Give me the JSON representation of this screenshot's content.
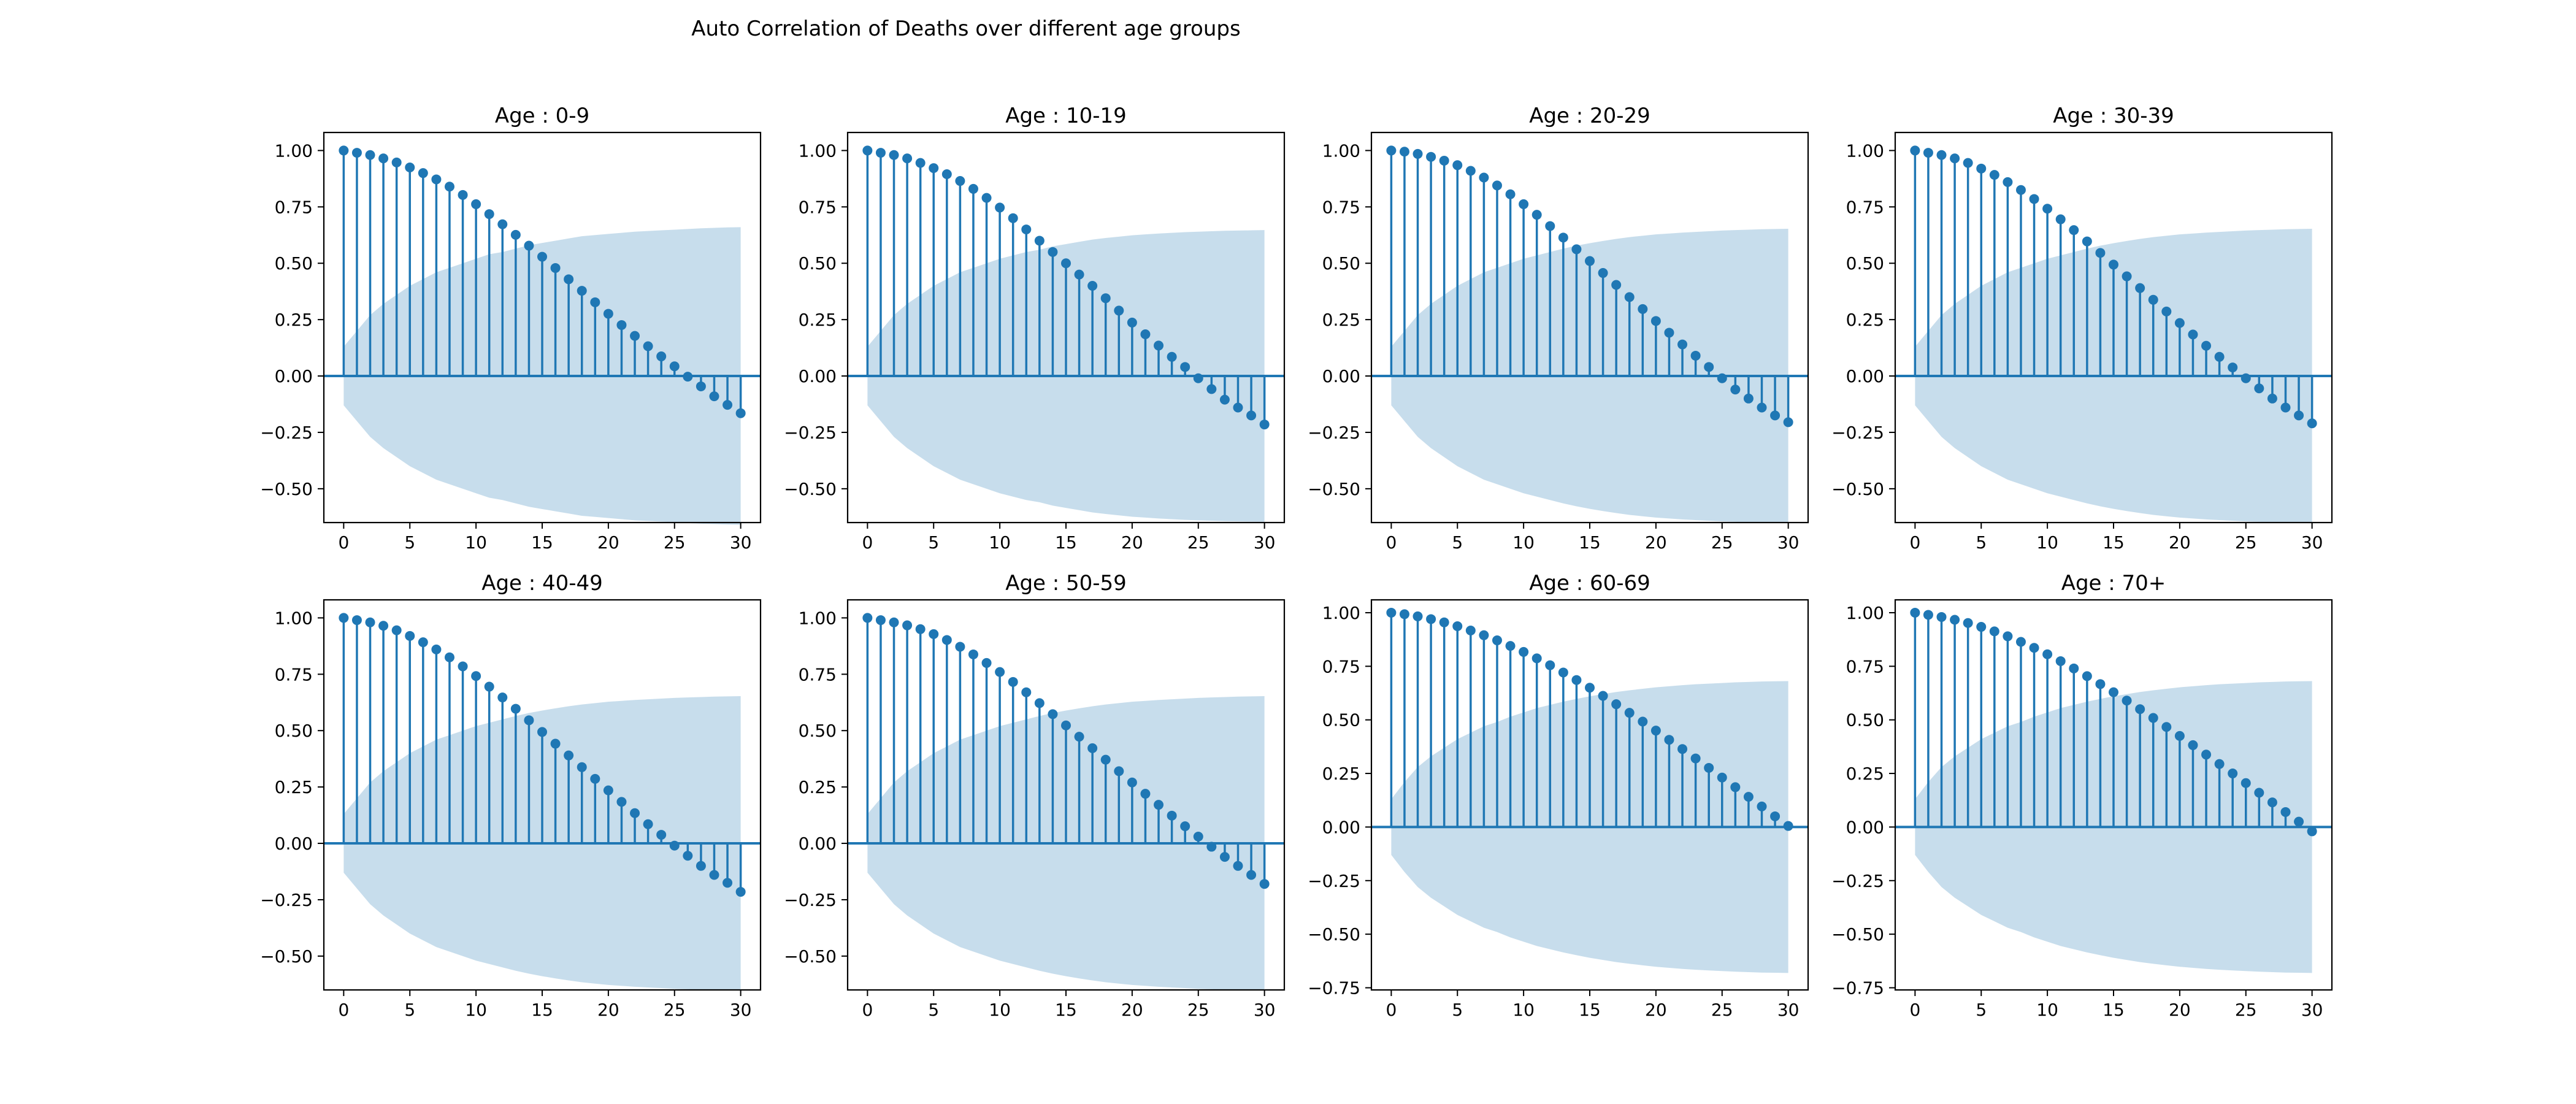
{
  "figure": {
    "suptitle": "Auto Correlation of Deaths over different age groups",
    "stem_color": "#1f77b4",
    "band_color": "#1f77b4",
    "band_opacity": 0.25
  },
  "chart_data": [
    {
      "type": "stem",
      "title": "Age : 0-9",
      "xlabel": "",
      "ylabel": "",
      "xlim": [
        -1.5,
        31.5
      ],
      "ylim": [
        -0.65,
        1.08
      ],
      "xticks": [
        0,
        5,
        10,
        15,
        20,
        25,
        30
      ],
      "yticks": [
        -0.5,
        -0.25,
        0.0,
        0.25,
        0.5,
        0.75,
        1.0
      ],
      "ytick_labels": [
        "−0.50",
        "−0.25",
        "0.00",
        "0.25",
        "0.50",
        "0.75",
        "1.00"
      ],
      "xtick_labels": [
        "0",
        "5",
        "10",
        "15",
        "20",
        "25",
        "30"
      ],
      "lags": [
        0,
        1,
        2,
        3,
        4,
        5,
        6,
        7,
        8,
        9,
        10,
        11,
        12,
        13,
        14,
        15,
        16,
        17,
        18,
        19,
        20,
        21,
        22,
        23,
        24,
        25,
        26,
        27,
        28,
        29,
        30
      ],
      "values": [
        1.0,
        0.99,
        0.98,
        0.965,
        0.947,
        0.925,
        0.9,
        0.872,
        0.84,
        0.803,
        0.762,
        0.718,
        0.673,
        0.626,
        0.578,
        0.529,
        0.479,
        0.429,
        0.378,
        0.327,
        0.276,
        0.226,
        0.178,
        0.132,
        0.087,
        0.043,
        -0.003,
        -0.046,
        -0.09,
        -0.128,
        -0.165
      ],
      "conf_band": [
        0.13,
        0.2,
        0.27,
        0.32,
        0.36,
        0.4,
        0.43,
        0.46,
        0.48,
        0.5,
        0.52,
        0.54,
        0.55,
        0.565,
        0.58,
        0.59,
        0.6,
        0.61,
        0.62,
        0.625,
        0.63,
        0.635,
        0.64,
        0.643,
        0.646,
        0.649,
        0.652,
        0.655,
        0.657,
        0.659,
        0.66
      ]
    },
    {
      "type": "stem",
      "title": "Age : 10-19",
      "xlabel": "",
      "ylabel": "",
      "xlim": [
        -1.5,
        31.5
      ],
      "ylim": [
        -0.65,
        1.08
      ],
      "xticks": [
        0,
        5,
        10,
        15,
        20,
        25,
        30
      ],
      "yticks": [
        -0.5,
        -0.25,
        0.0,
        0.25,
        0.5,
        0.75,
        1.0
      ],
      "ytick_labels": [
        "−0.50",
        "−0.25",
        "0.00",
        "0.25",
        "0.50",
        "0.75",
        "1.00"
      ],
      "xtick_labels": [
        "0",
        "5",
        "10",
        "15",
        "20",
        "25",
        "30"
      ],
      "lags": [
        0,
        1,
        2,
        3,
        4,
        5,
        6,
        7,
        8,
        9,
        10,
        11,
        12,
        13,
        14,
        15,
        16,
        17,
        18,
        19,
        20,
        21,
        22,
        23,
        24,
        25,
        26,
        27,
        28,
        29,
        30
      ],
      "values": [
        1.0,
        0.99,
        0.98,
        0.965,
        0.945,
        0.922,
        0.895,
        0.865,
        0.83,
        0.79,
        0.747,
        0.7,
        0.65,
        0.6,
        0.55,
        0.5,
        0.45,
        0.4,
        0.345,
        0.29,
        0.237,
        0.185,
        0.135,
        0.085,
        0.04,
        -0.01,
        -0.058,
        -0.105,
        -0.14,
        -0.175,
        -0.215
      ],
      "conf_band": [
        0.13,
        0.2,
        0.27,
        0.32,
        0.36,
        0.4,
        0.43,
        0.46,
        0.48,
        0.5,
        0.52,
        0.535,
        0.55,
        0.56,
        0.575,
        0.585,
        0.595,
        0.605,
        0.612,
        0.618,
        0.624,
        0.628,
        0.632,
        0.635,
        0.638,
        0.64,
        0.642,
        0.644,
        0.645,
        0.646,
        0.647
      ]
    },
    {
      "type": "stem",
      "title": "Age : 20-29",
      "xlabel": "",
      "ylabel": "",
      "xlim": [
        -1.5,
        31.5
      ],
      "ylim": [
        -0.65,
        1.08
      ],
      "xticks": [
        0,
        5,
        10,
        15,
        20,
        25,
        30
      ],
      "yticks": [
        -0.5,
        -0.25,
        0.0,
        0.25,
        0.5,
        0.75,
        1.0
      ],
      "ytick_labels": [
        "−0.50",
        "−0.25",
        "0.00",
        "0.25",
        "0.50",
        "0.75",
        "1.00"
      ],
      "xtick_labels": [
        "0",
        "5",
        "10",
        "15",
        "20",
        "25",
        "30"
      ],
      "lags": [
        0,
        1,
        2,
        3,
        4,
        5,
        6,
        7,
        8,
        9,
        10,
        11,
        12,
        13,
        14,
        15,
        16,
        17,
        18,
        19,
        20,
        21,
        22,
        23,
        24,
        25,
        26,
        27,
        28,
        29,
        30
      ],
      "values": [
        1.0,
        0.995,
        0.985,
        0.972,
        0.955,
        0.935,
        0.91,
        0.88,
        0.845,
        0.806,
        0.762,
        0.715,
        0.665,
        0.614,
        0.562,
        0.51,
        0.457,
        0.404,
        0.35,
        0.297,
        0.244,
        0.192,
        0.14,
        0.09,
        0.04,
        -0.01,
        -0.06,
        -0.1,
        -0.14,
        -0.175,
        -0.205
      ],
      "conf_band": [
        0.13,
        0.2,
        0.27,
        0.32,
        0.36,
        0.4,
        0.43,
        0.46,
        0.48,
        0.5,
        0.52,
        0.535,
        0.55,
        0.565,
        0.578,
        0.589,
        0.599,
        0.608,
        0.616,
        0.622,
        0.628,
        0.632,
        0.636,
        0.639,
        0.642,
        0.645,
        0.647,
        0.649,
        0.651,
        0.652,
        0.653
      ]
    },
    {
      "type": "stem",
      "title": "Age : 30-39",
      "xlabel": "",
      "ylabel": "",
      "xlim": [
        -1.5,
        31.5
      ],
      "ylim": [
        -0.65,
        1.08
      ],
      "xticks": [
        0,
        5,
        10,
        15,
        20,
        25,
        30
      ],
      "yticks": [
        -0.5,
        -0.25,
        0.0,
        0.25,
        0.5,
        0.75,
        1.0
      ],
      "ytick_labels": [
        "−0.50",
        "−0.25",
        "0.00",
        "0.25",
        "0.50",
        "0.75",
        "1.00"
      ],
      "xtick_labels": [
        "0",
        "5",
        "10",
        "15",
        "20",
        "25",
        "30"
      ],
      "lags": [
        0,
        1,
        2,
        3,
        4,
        5,
        6,
        7,
        8,
        9,
        10,
        11,
        12,
        13,
        14,
        15,
        16,
        17,
        18,
        19,
        20,
        21,
        22,
        23,
        24,
        25,
        26,
        27,
        28,
        29,
        30
      ],
      "values": [
        1.0,
        0.99,
        0.98,
        0.965,
        0.945,
        0.92,
        0.892,
        0.86,
        0.825,
        0.785,
        0.742,
        0.695,
        0.647,
        0.597,
        0.546,
        0.494,
        0.442,
        0.39,
        0.338,
        0.286,
        0.235,
        0.184,
        0.134,
        0.085,
        0.038,
        -0.01,
        -0.055,
        -0.1,
        -0.14,
        -0.175,
        -0.21
      ],
      "conf_band": [
        0.13,
        0.2,
        0.27,
        0.32,
        0.36,
        0.4,
        0.43,
        0.46,
        0.48,
        0.5,
        0.52,
        0.535,
        0.55,
        0.565,
        0.578,
        0.589,
        0.599,
        0.608,
        0.616,
        0.622,
        0.628,
        0.632,
        0.636,
        0.639,
        0.642,
        0.645,
        0.647,
        0.649,
        0.651,
        0.652,
        0.653
      ]
    },
    {
      "type": "stem",
      "title": "Age : 40-49",
      "xlabel": "",
      "ylabel": "",
      "xlim": [
        -1.5,
        31.5
      ],
      "ylim": [
        -0.65,
        1.08
      ],
      "xticks": [
        0,
        5,
        10,
        15,
        20,
        25,
        30
      ],
      "yticks": [
        -0.5,
        -0.25,
        0.0,
        0.25,
        0.5,
        0.75,
        1.0
      ],
      "ytick_labels": [
        "−0.50",
        "−0.25",
        "0.00",
        "0.25",
        "0.50",
        "0.75",
        "1.00"
      ],
      "xtick_labels": [
        "0",
        "5",
        "10",
        "15",
        "20",
        "25",
        "30"
      ],
      "lags": [
        0,
        1,
        2,
        3,
        4,
        5,
        6,
        7,
        8,
        9,
        10,
        11,
        12,
        13,
        14,
        15,
        16,
        17,
        18,
        19,
        20,
        21,
        22,
        23,
        24,
        25,
        26,
        27,
        28,
        29,
        30
      ],
      "values": [
        1.0,
        0.99,
        0.98,
        0.965,
        0.945,
        0.92,
        0.892,
        0.86,
        0.825,
        0.785,
        0.742,
        0.695,
        0.647,
        0.597,
        0.546,
        0.494,
        0.442,
        0.39,
        0.338,
        0.286,
        0.235,
        0.184,
        0.134,
        0.085,
        0.038,
        -0.01,
        -0.055,
        -0.1,
        -0.14,
        -0.175,
        -0.215
      ],
      "conf_band": [
        0.13,
        0.2,
        0.27,
        0.32,
        0.36,
        0.4,
        0.43,
        0.46,
        0.48,
        0.5,
        0.52,
        0.535,
        0.55,
        0.565,
        0.578,
        0.589,
        0.599,
        0.608,
        0.616,
        0.622,
        0.628,
        0.632,
        0.636,
        0.639,
        0.642,
        0.645,
        0.647,
        0.649,
        0.651,
        0.652,
        0.653
      ]
    },
    {
      "type": "stem",
      "title": "Age : 50-59",
      "xlabel": "",
      "ylabel": "",
      "xlim": [
        -1.5,
        31.5
      ],
      "ylim": [
        -0.65,
        1.08
      ],
      "xticks": [
        0,
        5,
        10,
        15,
        20,
        25,
        30
      ],
      "yticks": [
        -0.5,
        -0.25,
        0.0,
        0.25,
        0.5,
        0.75,
        1.0
      ],
      "ytick_labels": [
        "−0.50",
        "−0.25",
        "0.00",
        "0.25",
        "0.50",
        "0.75",
        "1.00"
      ],
      "xtick_labels": [
        "0",
        "5",
        "10",
        "15",
        "20",
        "25",
        "30"
      ],
      "lags": [
        0,
        1,
        2,
        3,
        4,
        5,
        6,
        7,
        8,
        9,
        10,
        11,
        12,
        13,
        14,
        15,
        16,
        17,
        18,
        19,
        20,
        21,
        22,
        23,
        24,
        25,
        26,
        27,
        28,
        29,
        30
      ],
      "values": [
        1.0,
        0.99,
        0.98,
        0.967,
        0.95,
        0.928,
        0.902,
        0.872,
        0.838,
        0.8,
        0.76,
        0.716,
        0.67,
        0.622,
        0.573,
        0.523,
        0.473,
        0.422,
        0.371,
        0.32,
        0.27,
        0.22,
        0.171,
        0.123,
        0.076,
        0.03,
        -0.015,
        -0.06,
        -0.1,
        -0.14,
        -0.18
      ],
      "conf_band": [
        0.13,
        0.2,
        0.27,
        0.32,
        0.36,
        0.4,
        0.43,
        0.46,
        0.48,
        0.5,
        0.52,
        0.535,
        0.55,
        0.565,
        0.578,
        0.589,
        0.599,
        0.608,
        0.616,
        0.622,
        0.628,
        0.632,
        0.636,
        0.639,
        0.642,
        0.645,
        0.647,
        0.649,
        0.651,
        0.652,
        0.653
      ]
    },
    {
      "type": "stem",
      "title": "Age : 60-69",
      "xlabel": "",
      "ylabel": "",
      "xlim": [
        -1.5,
        31.5
      ],
      "ylim": [
        -0.76,
        1.06
      ],
      "xticks": [
        0,
        5,
        10,
        15,
        20,
        25,
        30
      ],
      "yticks": [
        -0.75,
        -0.5,
        -0.25,
        0.0,
        0.25,
        0.5,
        0.75,
        1.0
      ],
      "ytick_labels": [
        "−0.75",
        "−0.50",
        "−0.25",
        "0.00",
        "0.25",
        "0.50",
        "0.75",
        "1.00"
      ],
      "xtick_labels": [
        "0",
        "5",
        "10",
        "15",
        "20",
        "25",
        "30"
      ],
      "lags": [
        0,
        1,
        2,
        3,
        4,
        5,
        6,
        7,
        8,
        9,
        10,
        11,
        12,
        13,
        14,
        15,
        16,
        17,
        18,
        19,
        20,
        21,
        22,
        23,
        24,
        25,
        26,
        27,
        28,
        29,
        30
      ],
      "values": [
        1.0,
        0.993,
        0.983,
        0.97,
        0.955,
        0.937,
        0.917,
        0.895,
        0.871,
        0.845,
        0.817,
        0.787,
        0.755,
        0.721,
        0.686,
        0.65,
        0.612,
        0.573,
        0.533,
        0.492,
        0.45,
        0.407,
        0.364,
        0.32,
        0.276,
        0.231,
        0.186,
        0.141,
        0.096,
        0.05,
        0.005
      ],
      "conf_band": [
        0.13,
        0.21,
        0.28,
        0.33,
        0.37,
        0.41,
        0.44,
        0.47,
        0.49,
        0.515,
        0.535,
        0.555,
        0.57,
        0.585,
        0.598,
        0.61,
        0.62,
        0.63,
        0.638,
        0.645,
        0.652,
        0.657,
        0.662,
        0.666,
        0.669,
        0.672,
        0.675,
        0.677,
        0.679,
        0.68,
        0.681
      ]
    },
    {
      "type": "stem",
      "title": "Age : 70+",
      "xlabel": "",
      "ylabel": "",
      "xlim": [
        -1.5,
        31.5
      ],
      "ylim": [
        -0.76,
        1.06
      ],
      "xticks": [
        0,
        5,
        10,
        15,
        20,
        25,
        30
      ],
      "yticks": [
        -0.75,
        -0.5,
        -0.25,
        0.0,
        0.25,
        0.5,
        0.75,
        1.0
      ],
      "ytick_labels": [
        "−0.75",
        "−0.50",
        "−0.25",
        "0.00",
        "0.25",
        "0.50",
        "0.75",
        "1.00"
      ],
      "xtick_labels": [
        "0",
        "5",
        "10",
        "15",
        "20",
        "25",
        "30"
      ],
      "lags": [
        0,
        1,
        2,
        3,
        4,
        5,
        6,
        7,
        8,
        9,
        10,
        11,
        12,
        13,
        14,
        15,
        16,
        17,
        18,
        19,
        20,
        21,
        22,
        23,
        24,
        25,
        26,
        27,
        28,
        29,
        30
      ],
      "values": [
        1.0,
        0.99,
        0.98,
        0.967,
        0.952,
        0.934,
        0.913,
        0.89,
        0.864,
        0.836,
        0.806,
        0.774,
        0.74,
        0.704,
        0.667,
        0.629,
        0.59,
        0.55,
        0.509,
        0.467,
        0.425,
        0.382,
        0.338,
        0.294,
        0.25,
        0.205,
        0.16,
        0.115,
        0.07,
        0.025,
        -0.02
      ],
      "conf_band": [
        0.13,
        0.21,
        0.28,
        0.33,
        0.37,
        0.41,
        0.44,
        0.47,
        0.49,
        0.515,
        0.535,
        0.555,
        0.57,
        0.585,
        0.598,
        0.61,
        0.62,
        0.63,
        0.638,
        0.645,
        0.652,
        0.657,
        0.662,
        0.666,
        0.669,
        0.672,
        0.675,
        0.677,
        0.679,
        0.68,
        0.681
      ]
    }
  ]
}
